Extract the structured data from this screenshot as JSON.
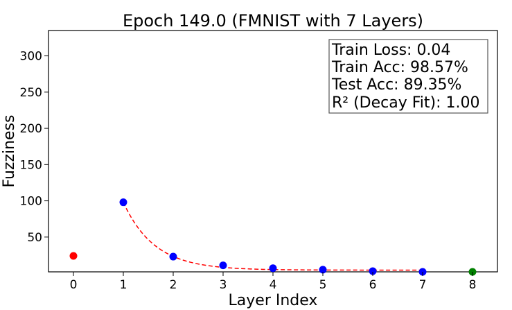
{
  "chart_data": {
    "type": "scatter",
    "title": "Epoch 149.0 (FMNIST with 7 Layers)",
    "xlabel": "Layer Index",
    "ylabel": "Fuzziness",
    "xlim": [
      -0.5,
      8.5
    ],
    "ylim": [
      2,
      335
    ],
    "xticks": [
      0,
      1,
      2,
      3,
      4,
      5,
      6,
      7,
      8
    ],
    "yticks": [
      50,
      100,
      150,
      200,
      250,
      300
    ],
    "grid": false,
    "annotation_box": {
      "placement": "top-right",
      "lines": [
        "Train Loss: 0.04",
        "Train Acc: 98.57%",
        "Test Acc: 89.35%",
        "R² (Decay Fit): 1.00"
      ]
    },
    "series": [
      {
        "color": "#ff0000",
        "x": [
          0
        ],
        "y": [
          24
        ]
      },
      {
        "color": "#0000ff",
        "x": [
          1,
          2,
          3,
          4,
          5,
          6,
          7
        ],
        "y": [
          98,
          23,
          11,
          7,
          5,
          3,
          2
        ]
      },
      {
        "color": "#008000",
        "x": [
          8
        ],
        "y": [
          2
        ]
      }
    ],
    "fit_curve": {
      "style": "dashed",
      "color": "#ff0000",
      "x_range": [
        1,
        7
      ],
      "asymptote": 4.4,
      "amplitude": 93.6,
      "decay_rate": 1.6
    }
  }
}
